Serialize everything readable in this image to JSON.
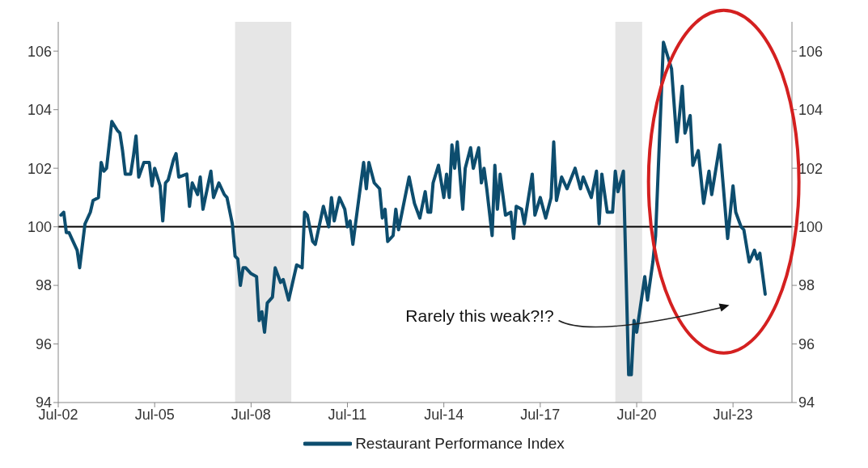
{
  "chart_data": {
    "type": "line",
    "annotations": [
      "Rarely this weak?!?"
    ],
    "x": [
      "2002-08",
      "2002-09",
      "2002-10",
      "2002-11",
      "2003-01",
      "2003-02",
      "2003-03",
      "2003-05",
      "2003-07",
      "2003-08",
      "2003-10",
      "2003-11",
      "2003-12",
      "2004-01",
      "2004-03",
      "2004-05",
      "2004-06",
      "2004-07",
      "2004-08",
      "2004-10",
      "2004-11",
      "2004-12",
      "2005-01",
      "2005-03",
      "2005-05",
      "2005-06",
      "2005-07",
      "2005-09",
      "2005-10",
      "2005-11",
      "2005-12",
      "2006-02",
      "2006-03",
      "2006-04",
      "2006-07",
      "2006-08",
      "2006-09",
      "2006-11",
      "2006-12",
      "2007-01",
      "2007-04",
      "2007-05",
      "2007-07",
      "2007-09",
      "2007-10",
      "2007-12",
      "2008-01",
      "2008-02",
      "2008-03",
      "2008-04",
      "2008-05",
      "2008-07",
      "2008-09",
      "2008-10",
      "2008-11",
      "2008-12",
      "2009-01",
      "2009-03",
      "2009-04",
      "2009-06",
      "2009-07",
      "2009-09",
      "2009-12",
      "2010-02",
      "2010-03",
      "2010-04",
      "2010-06",
      "2010-07",
      "2010-10",
      "2010-12",
      "2011-01",
      "2011-02",
      "2011-04",
      "2011-06",
      "2011-07",
      "2011-08",
      "2011-09",
      "2011-10",
      "2012-01",
      "2012-02",
      "2012-03",
      "2012-05",
      "2012-07",
      "2012-08",
      "2012-09",
      "2012-10",
      "2012-12",
      "2013-01",
      "2013-02",
      "2013-06",
      "2013-08",
      "2013-10",
      "2013-12",
      "2014-01",
      "2014-02",
      "2014-03",
      "2014-05",
      "2014-07",
      "2014-08",
      "2014-09",
      "2014-10",
      "2014-11",
      "2014-12",
      "2015-02",
      "2015-03",
      "2015-05",
      "2015-06",
      "2015-08",
      "2015-09",
      "2015-10",
      "2015-11",
      "2016-01",
      "2016-02",
      "2016-03",
      "2016-04",
      "2016-06",
      "2016-08",
      "2016-09",
      "2016-10",
      "2016-12",
      "2017-01",
      "2017-04",
      "2017-05",
      "2017-07",
      "2017-09",
      "2017-11",
      "2017-12",
      "2018-01",
      "2018-03",
      "2018-05",
      "2018-08",
      "2018-10",
      "2018-11",
      "2019-02",
      "2019-04",
      "2019-05",
      "2019-06",
      "2019-08",
      "2019-10",
      "2019-11",
      "2019-12",
      "2020-02",
      "2020-04",
      "2020-05",
      "2020-06",
      "2020-07",
      "2020-10",
      "2020-11",
      "2021-01",
      "2021-02",
      "2021-05",
      "2021-08",
      "2021-10",
      "2021-12",
      "2022-01",
      "2022-03",
      "2022-04",
      "2022-06",
      "2022-08",
      "2022-10",
      "2022-11",
      "2023-02",
      "2023-05",
      "2023-07",
      "2023-08",
      "2023-10",
      "2023-11",
      "2024-01",
      "2024-03",
      "2024-04",
      "2024-05",
      "2024-07"
    ],
    "series": [
      {
        "name": "Restaurant Performance Index",
        "color": "#0d4d6e",
        "values": [
          100.4,
          100.5,
          99.8,
          99.8,
          99.4,
          99.2,
          98.6,
          100.1,
          100.5,
          100.9,
          101.0,
          102.2,
          101.9,
          102.0,
          103.6,
          103.3,
          103.2,
          102.6,
          101.8,
          101.8,
          102.4,
          103.1,
          101.7,
          102.2,
          102.2,
          101.4,
          102.0,
          101.4,
          100.2,
          101.5,
          101.6,
          102.3,
          102.5,
          101.7,
          101.8,
          100.7,
          101.5,
          101.1,
          101.7,
          100.6,
          101.9,
          101.0,
          101.5,
          101.1,
          101.0,
          100.1,
          99.0,
          98.9,
          98.0,
          98.6,
          98.6,
          98.4,
          98.3,
          96.8,
          97.1,
          96.4,
          97.4,
          97.6,
          98.6,
          98.1,
          98.2,
          97.5,
          98.7,
          98.6,
          100.5,
          100.4,
          99.5,
          99.4,
          100.7,
          100.0,
          101.0,
          100.2,
          101.0,
          100.6,
          100.0,
          100.2,
          99.4,
          100.1,
          102.2,
          101.3,
          102.2,
          101.5,
          101.3,
          100.3,
          100.6,
          99.5,
          99.7,
          100.6,
          99.9,
          101.7,
          100.8,
          100.3,
          101.2,
          100.5,
          100.5,
          101.5,
          102.1,
          101.0,
          101.8,
          101.0,
          102.8,
          102.0,
          102.9,
          100.6,
          102.0,
          102.7,
          102.0,
          102.7,
          101.5,
          102.0,
          101.3,
          99.7,
          102.1,
          100.6,
          101.8,
          100.4,
          100.5,
          99.6,
          100.7,
          100.6,
          100.1,
          101.8,
          100.4,
          101.0,
          100.3,
          101.0,
          102.9,
          100.9,
          101.7,
          101.3,
          102.0,
          101.3,
          101.7,
          101.0,
          101.9,
          100.1,
          101.8,
          100.5,
          100.5,
          101.9,
          101.2,
          101.9,
          94.95,
          94.95,
          96.8,
          96.4,
          98.3,
          97.5,
          98.8,
          99.7,
          106.3,
          105.4,
          102.9,
          104.8,
          103.2,
          103.8,
          102.1,
          102.6,
          100.8,
          101.9,
          101.1,
          102.8,
          99.6,
          101.4,
          100.5,
          100.0,
          99.9,
          98.8,
          99.2,
          98.9,
          99.1,
          97.7
        ]
      }
    ],
    "xlim": [
      "2002-07",
      "2025-05"
    ],
    "xticks": [
      {
        "value": "2002-07",
        "label": "Jul-02"
      },
      {
        "value": "2005-07",
        "label": "Jul-05"
      },
      {
        "value": "2008-07",
        "label": "Jul-08"
      },
      {
        "value": "2011-07",
        "label": "Jul-11"
      },
      {
        "value": "2014-07",
        "label": "Jul-14"
      },
      {
        "value": "2017-07",
        "label": "Jul-17"
      },
      {
        "value": "2020-07",
        "label": "Jul-20"
      },
      {
        "value": "2023-07",
        "label": "Jul-23"
      }
    ],
    "ylim": [
      94,
      107
    ],
    "yticks": [
      94,
      96,
      98,
      100,
      102,
      104,
      106
    ],
    "y2lim": [
      94,
      107
    ],
    "y2ticks": [
      94,
      96,
      98,
      100,
      102,
      104,
      106
    ],
    "ref_lines": [
      {
        "axis": "y",
        "value": 100,
        "color": "#000000"
      }
    ],
    "bands": [
      {
        "axis": "x",
        "from": "2008-01",
        "to": "2009-10",
        "color": "#e6e6e6"
      },
      {
        "axis": "x",
        "from": "2019-11",
        "to": "2020-09",
        "color": "#e6e6e6"
      }
    ],
    "grid": false,
    "legend": "bottom",
    "marker": "none",
    "line_style": "solid"
  }
}
